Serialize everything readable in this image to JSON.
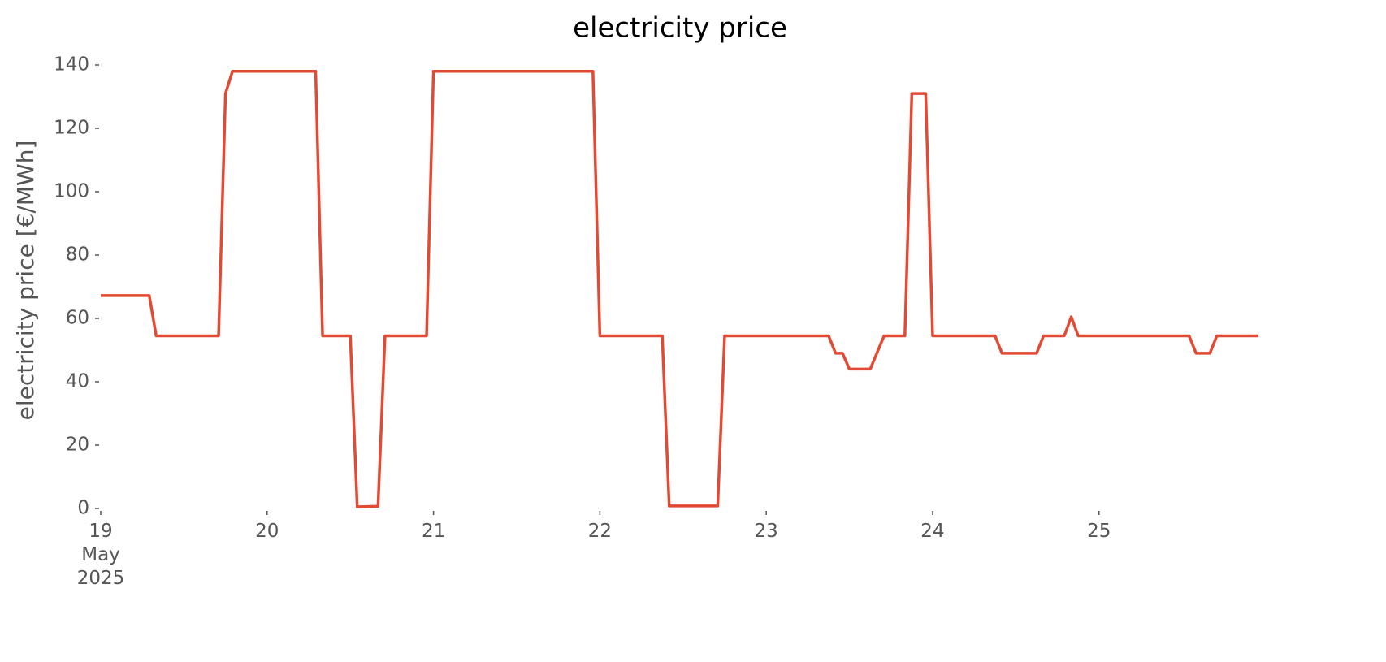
{
  "chart_data": {
    "type": "line",
    "title": "electricity price",
    "y_label": "electricity price [€/MWh]",
    "x": [
      "2025-05-19T00:00",
      "2025-05-19T07:00",
      "2025-05-19T08:00",
      "2025-05-19T17:00",
      "2025-05-19T18:00",
      "2025-05-19T19:00",
      "2025-05-20T07:00",
      "2025-05-20T08:00",
      "2025-05-20T12:00",
      "2025-05-20T13:00",
      "2025-05-20T16:00",
      "2025-05-20T17:00",
      "2025-05-20T23:00",
      "2025-05-21T00:00",
      "2025-05-21T23:00",
      "2025-05-22T00:00",
      "2025-05-22T09:00",
      "2025-05-22T10:00",
      "2025-05-22T17:00",
      "2025-05-22T18:00",
      "2025-05-23T09:00",
      "2025-05-23T10:00",
      "2025-05-23T11:00",
      "2025-05-23T12:00",
      "2025-05-23T15:00",
      "2025-05-23T17:00",
      "2025-05-23T20:00",
      "2025-05-23T21:00",
      "2025-05-23T23:00",
      "2025-05-24T00:00",
      "2025-05-24T09:00",
      "2025-05-24T10:00",
      "2025-05-24T15:00",
      "2025-05-24T16:00",
      "2025-05-24T19:00",
      "2025-05-24T20:00",
      "2025-05-24T21:00",
      "2025-05-25T13:00",
      "2025-05-25T14:00",
      "2025-05-25T16:00",
      "2025-05-25T17:00",
      "2025-05-25T23:00"
    ],
    "series": [
      {
        "name": "electricity price",
        "color": "#e24a33",
        "values": [
          67.2,
          67.2,
          54.5,
          54.5,
          131,
          138,
          138,
          54.5,
          54.5,
          0.5,
          0.7,
          54.5,
          54.5,
          138,
          138,
          54.5,
          54.5,
          0.8,
          0.8,
          54.5,
          54.5,
          49,
          49,
          44,
          44,
          54.5,
          54.5,
          131,
          131,
          54.5,
          54.5,
          49,
          49,
          54.5,
          54.5,
          60.5,
          54.5,
          54.5,
          49,
          49,
          54.5,
          54.5
        ]
      }
    ],
    "xlim": [
      "2025-05-19T00:00",
      "2025-05-25T23:00"
    ],
    "xticks": [
      {
        "value": "2025-05-19T00:00",
        "label": "19\nMay\n2025"
      },
      {
        "value": "2025-05-20T00:00",
        "label": "20"
      },
      {
        "value": "2025-05-21T00:00",
        "label": "21"
      },
      {
        "value": "2025-05-22T00:00",
        "label": "22"
      },
      {
        "value": "2025-05-23T00:00",
        "label": "23"
      },
      {
        "value": "2025-05-24T00:00",
        "label": "24"
      },
      {
        "value": "2025-05-25T00:00",
        "label": "25"
      }
    ],
    "ylim": [
      0,
      140
    ],
    "yticks": [
      0,
      20,
      40,
      60,
      80,
      100,
      120,
      140
    ],
    "grid": false
  }
}
